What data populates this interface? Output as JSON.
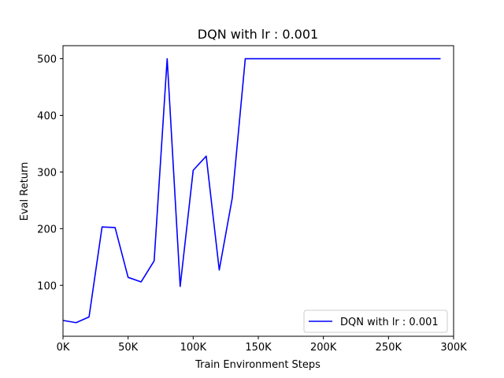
{
  "chart_data": {
    "type": "line",
    "title": "DQN with lr : 0.001",
    "xlabel": "Train Environment Steps",
    "ylabel": "Eval Return",
    "xlim": [
      0,
      300000
    ],
    "ylim": [
      10,
      523
    ],
    "xticks": [
      {
        "value": 0,
        "label": "0K"
      },
      {
        "value": 50000,
        "label": "50K"
      },
      {
        "value": 100000,
        "label": "100K"
      },
      {
        "value": 150000,
        "label": "150K"
      },
      {
        "value": 200000,
        "label": "200K"
      },
      {
        "value": 250000,
        "label": "250K"
      },
      {
        "value": 300000,
        "label": "300K"
      }
    ],
    "yticks": [
      {
        "value": 100,
        "label": "100"
      },
      {
        "value": 200,
        "label": "200"
      },
      {
        "value": 300,
        "label": "300"
      },
      {
        "value": 400,
        "label": "400"
      },
      {
        "value": 500,
        "label": "500"
      }
    ],
    "grid": false,
    "legend_position": "bottom-right",
    "series": [
      {
        "name": "DQN with lr : 0.001",
        "color": "#0000ff",
        "x": [
          0,
          10000,
          20000,
          30000,
          40000,
          50000,
          60000,
          70000,
          80000,
          90000,
          100000,
          110000,
          120000,
          130000,
          140000,
          150000,
          160000,
          170000,
          180000,
          190000,
          200000,
          210000,
          220000,
          230000,
          240000,
          250000,
          260000,
          270000,
          280000,
          290000
        ],
        "y": [
          38,
          34,
          44,
          203,
          202,
          114,
          106,
          143,
          500,
          98,
          303,
          328,
          127,
          254,
          500,
          500,
          500,
          500,
          500,
          500,
          500,
          500,
          500,
          500,
          500,
          500,
          500,
          500,
          500,
          500
        ]
      }
    ]
  }
}
